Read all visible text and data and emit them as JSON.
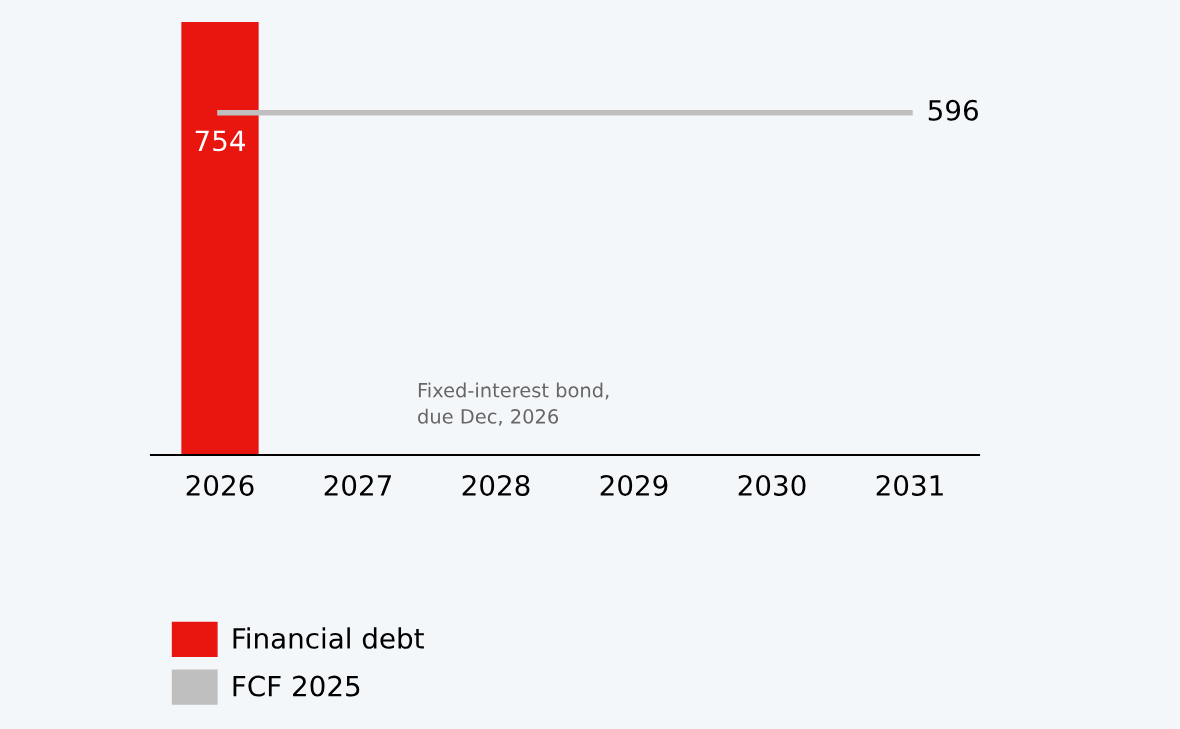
{
  "chart_data": {
    "type": "bar",
    "categories": [
      "2026",
      "2027",
      "2028",
      "2029",
      "2030",
      "2031"
    ],
    "series": [
      {
        "name": "Financial debt",
        "color": "#e8160f",
        "values": [
          754,
          null,
          null,
          null,
          null,
          null
        ],
        "value_labels": [
          "754",
          null,
          null,
          null,
          null,
          null
        ]
      },
      {
        "name": "FCF 2025",
        "type": "line",
        "color": "#bfbfbf",
        "values": [
          596,
          596,
          596,
          596,
          596,
          596
        ],
        "value_labels": [
          null,
          null,
          null,
          null,
          null,
          "596"
        ]
      }
    ],
    "ylim": [
      0,
      754
    ],
    "tick_labels": "x",
    "grid": false,
    "legend": "bottom left",
    "annotations": [
      "Fixed-interest bond,\ndue Dec, 2026"
    ]
  }
}
